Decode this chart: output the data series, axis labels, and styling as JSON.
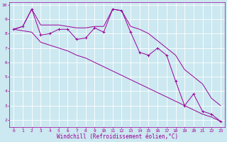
{
  "xlabel": "Windchill (Refroidissement éolien,°C)",
  "x": [
    0,
    1,
    2,
    3,
    4,
    5,
    6,
    7,
    8,
    9,
    10,
    11,
    12,
    13,
    14,
    15,
    16,
    17,
    18,
    19,
    20,
    21,
    22,
    23
  ],
  "y_main": [
    8.3,
    8.5,
    9.7,
    7.9,
    8.0,
    8.3,
    8.3,
    7.6,
    7.7,
    8.4,
    8.1,
    9.7,
    9.6,
    8.1,
    6.7,
    6.5,
    7.0,
    6.5,
    4.7,
    3.0,
    3.8,
    2.6,
    2.4,
    1.9
  ],
  "y_upper": [
    8.3,
    8.5,
    9.7,
    8.6,
    8.6,
    8.6,
    8.5,
    8.4,
    8.4,
    8.5,
    8.5,
    9.7,
    9.6,
    8.5,
    8.3,
    8.0,
    7.5,
    7.0,
    6.5,
    5.5,
    5.0,
    4.5,
    3.5,
    3.0
  ],
  "y_lower": [
    8.3,
    8.2,
    8.1,
    7.4,
    7.2,
    7.0,
    6.8,
    6.5,
    6.3,
    6.0,
    5.7,
    5.4,
    5.1,
    4.8,
    4.5,
    4.2,
    3.9,
    3.6,
    3.3,
    3.0,
    2.7,
    2.4,
    2.2,
    1.9
  ],
  "color": "#990099",
  "bg_color": "#cce8f0",
  "grid_color": "#ffffff",
  "ylim": [
    1.5,
    10.2
  ],
  "xlim": [
    -0.5,
    23.5
  ],
  "yticks": [
    2,
    3,
    4,
    5,
    6,
    7,
    8,
    9,
    10
  ],
  "xticks": [
    0,
    1,
    2,
    3,
    4,
    5,
    6,
    7,
    8,
    9,
    10,
    11,
    12,
    13,
    14,
    15,
    16,
    17,
    18,
    19,
    20,
    21,
    22,
    23
  ],
  "xlabel_fontsize": 5.5,
  "tick_fontsize": 4.5,
  "linewidth": 0.7,
  "markersize": 2.5
}
